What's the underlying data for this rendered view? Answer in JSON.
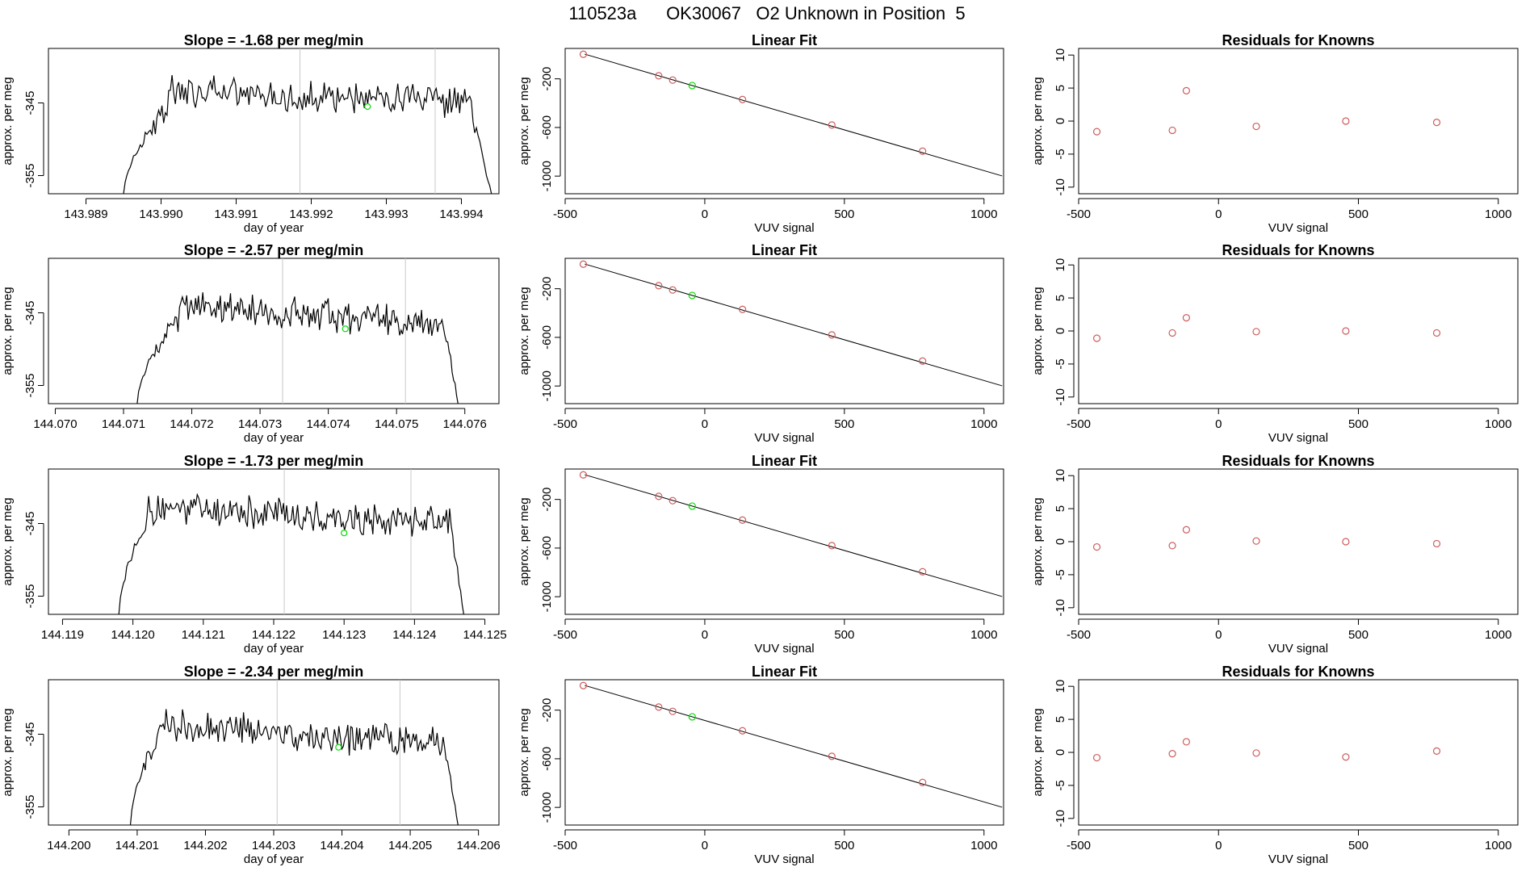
{
  "page_title": "110523a      OK30067   O2 Unknown in Position  5",
  "colors": {
    "line": "#000000",
    "grid": "#c8c8c8",
    "known": "#cd5c5c",
    "unknown": "#00dd00",
    "fit": "#000000"
  },
  "chart_data": [
    {
      "type": "line",
      "panel": "time-series",
      "row": 1,
      "title": "Slope =  -1.68  per meg/min",
      "xlabel": "day of year",
      "ylabel": "approx. per meg",
      "xlim": [
        143.9885,
        143.9945
      ],
      "ylim": [
        -357.5,
        -337.5
      ],
      "xticks": [
        "143.989",
        "143.990",
        "143.991",
        "143.992",
        "143.993",
        "143.994"
      ],
      "xtick_values": [
        143.989,
        143.99,
        143.991,
        143.992,
        143.993,
        143.994
      ],
      "yticks": [
        "-345",
        "-355"
      ],
      "ytick_values": [
        -345,
        -355
      ],
      "series_span": [
        143.9895,
        143.9944
      ],
      "rise_end": 143.9901,
      "fall_start": 143.9941,
      "plateau": -343.3,
      "trend": -0.6,
      "vlines": [
        143.99185,
        143.99365
      ],
      "marker": {
        "x": 143.99275,
        "y": -345.5
      }
    },
    {
      "type": "scatter",
      "panel": "linear-fit",
      "row": 1,
      "title": "Linear Fit",
      "xlabel": "VUV signal",
      "ylabel": "approx. per meg",
      "xlim": [
        -500,
        1070
      ],
      "ylim": [
        -1145,
        50
      ],
      "xticks": [
        "-500",
        "0",
        "500",
        "1000"
      ],
      "xtick_values": [
        -500,
        0,
        500,
        1000
      ],
      "yticks": [
        "-200",
        "-600",
        "-1000"
      ],
      "ytick_values": [
        -200,
        -600,
        -1000
      ],
      "knowns": [
        {
          "x": -435,
          "y": 2
        },
        {
          "x": -165,
          "y": -175
        },
        {
          "x": -115,
          "y": -210
        },
        {
          "x": 135,
          "y": -370
        },
        {
          "x": 455,
          "y": -580
        },
        {
          "x": 780,
          "y": -795
        }
      ],
      "unknown": {
        "x": -45,
        "y": -255
      },
      "fit_line": {
        "slope": -0.67,
        "intercept": -285,
        "x_range": [
          -430,
          1065
        ]
      }
    },
    {
      "type": "scatter",
      "panel": "residuals",
      "row": 1,
      "title": "Residuals for Knowns",
      "xlabel": "VUV signal",
      "ylabel": "approx. per meg",
      "xlim": [
        -500,
        1070
      ],
      "ylim": [
        -11,
        11
      ],
      "xticks": [
        "-500",
        "0",
        "500",
        "1000"
      ],
      "xtick_values": [
        -500,
        0,
        500,
        1000
      ],
      "yticks": [
        "-10",
        "-5",
        "0",
        "5",
        "10"
      ],
      "ytick_values": [
        -10,
        -5,
        0,
        5,
        10
      ],
      "knowns": [
        {
          "x": -435,
          "y": -1.6
        },
        {
          "x": -165,
          "y": -1.4
        },
        {
          "x": -115,
          "y": 4.6
        },
        {
          "x": 135,
          "y": -0.8
        },
        {
          "x": 455,
          "y": 0.0
        },
        {
          "x": 780,
          "y": -0.2
        }
      ]
    },
    {
      "type": "line",
      "panel": "time-series",
      "row": 2,
      "title": "Slope =  -2.57  per meg/min",
      "xlabel": "day of year",
      "ylabel": "approx. per meg",
      "xlim": [
        144.0699,
        144.0765
      ],
      "ylim": [
        -357.5,
        -337.5
      ],
      "xticks": [
        "144.070",
        "144.071",
        "144.072",
        "144.073",
        "144.074",
        "144.075",
        "144.076"
      ],
      "xtick_values": [
        144.07,
        144.071,
        144.072,
        144.073,
        144.074,
        144.075,
        144.076
      ],
      "yticks": [
        "-345",
        "-355"
      ],
      "ytick_values": [
        -345,
        -355
      ],
      "series_span": [
        144.0712,
        144.0759
      ],
      "rise_end": 144.0718,
      "fall_start": 144.0757,
      "plateau": -343.5,
      "trend": -1.1,
      "vlines": [
        144.07333,
        144.07513
      ],
      "marker": {
        "x": 144.07425,
        "y": -347.2
      }
    },
    {
      "type": "scatter",
      "panel": "linear-fit",
      "row": 2,
      "title": "Linear Fit",
      "xlabel": "VUV signal",
      "ylabel": "approx. per meg",
      "xlim": [
        -500,
        1070
      ],
      "ylim": [
        -1145,
        50
      ],
      "xticks": [
        "-500",
        "0",
        "500",
        "1000"
      ],
      "xtick_values": [
        -500,
        0,
        500,
        1000
      ],
      "yticks": [
        "-200",
        "-600",
        "-1000"
      ],
      "ytick_values": [
        -200,
        -600,
        -1000
      ],
      "knowns": [
        {
          "x": -435,
          "y": 2
        },
        {
          "x": -165,
          "y": -175
        },
        {
          "x": -115,
          "y": -210
        },
        {
          "x": 135,
          "y": -370
        },
        {
          "x": 455,
          "y": -580
        },
        {
          "x": 780,
          "y": -795
        }
      ],
      "unknown": {
        "x": -45,
        "y": -255
      },
      "fit_line": {
        "slope": -0.67,
        "intercept": -285,
        "x_range": [
          -430,
          1065
        ]
      }
    },
    {
      "type": "scatter",
      "panel": "residuals",
      "row": 2,
      "title": "Residuals for Knowns",
      "xlabel": "VUV signal",
      "ylabel": "approx. per meg",
      "xlim": [
        -500,
        1070
      ],
      "ylim": [
        -11,
        11
      ],
      "xticks": [
        "-500",
        "0",
        "500",
        "1000"
      ],
      "xtick_values": [
        -500,
        0,
        500,
        1000
      ],
      "yticks": [
        "-10",
        "-5",
        "0",
        "5",
        "10"
      ],
      "ytick_values": [
        -10,
        -5,
        0,
        5,
        10
      ],
      "knowns": [
        {
          "x": -435,
          "y": -1.1
        },
        {
          "x": -165,
          "y": -0.3
        },
        {
          "x": -115,
          "y": 2.0
        },
        {
          "x": 135,
          "y": -0.1
        },
        {
          "x": 455,
          "y": 0.0
        },
        {
          "x": 780,
          "y": -0.3
        }
      ]
    },
    {
      "type": "line",
      "panel": "time-series",
      "row": 3,
      "title": "Slope =  -1.73  per meg/min",
      "xlabel": "day of year",
      "ylabel": "approx. per meg",
      "xlim": [
        144.1188,
        144.1252
      ],
      "ylim": [
        -357.5,
        -337.5
      ],
      "xticks": [
        "144.119",
        "144.120",
        "144.121",
        "144.122",
        "144.123",
        "144.124",
        "144.125"
      ],
      "xtick_values": [
        144.119,
        144.12,
        144.121,
        144.122,
        144.123,
        144.124,
        144.125
      ],
      "yticks": [
        "-345",
        "-355"
      ],
      "ytick_values": [
        -345,
        -355
      ],
      "series_span": [
        144.1198,
        144.1247
      ],
      "rise_end": 144.1202,
      "fall_start": 144.1245,
      "plateau": -342.8,
      "trend": -0.7,
      "vlines": [
        144.12215,
        144.12395
      ],
      "marker": {
        "x": 144.123,
        "y": -346.3
      }
    },
    {
      "type": "scatter",
      "panel": "linear-fit",
      "row": 3,
      "title": "Linear Fit",
      "xlabel": "VUV signal",
      "ylabel": "approx. per meg",
      "xlim": [
        -500,
        1070
      ],
      "ylim": [
        -1145,
        50
      ],
      "xticks": [
        "-500",
        "0",
        "500",
        "1000"
      ],
      "xtick_values": [
        -500,
        0,
        500,
        1000
      ],
      "yticks": [
        "-200",
        "-600",
        "-1000"
      ],
      "ytick_values": [
        -200,
        -600,
        -1000
      ],
      "knowns": [
        {
          "x": -435,
          "y": 2
        },
        {
          "x": -165,
          "y": -175
        },
        {
          "x": -115,
          "y": -210
        },
        {
          "x": 135,
          "y": -370
        },
        {
          "x": 455,
          "y": -580
        },
        {
          "x": 780,
          "y": -795
        }
      ],
      "unknown": {
        "x": -45,
        "y": -255
      },
      "fit_line": {
        "slope": -0.67,
        "intercept": -285,
        "x_range": [
          -430,
          1065
        ]
      }
    },
    {
      "type": "scatter",
      "panel": "residuals",
      "row": 3,
      "title": "Residuals for Knowns",
      "xlabel": "VUV signal",
      "ylabel": "approx. per meg",
      "xlim": [
        -500,
        1070
      ],
      "ylim": [
        -11,
        11
      ],
      "xticks": [
        "-500",
        "0",
        "500",
        "1000"
      ],
      "xtick_values": [
        -500,
        0,
        500,
        1000
      ],
      "yticks": [
        "-10",
        "-5",
        "0",
        "5",
        "10"
      ],
      "ytick_values": [
        -10,
        -5,
        0,
        5,
        10
      ],
      "knowns": [
        {
          "x": -435,
          "y": -0.8
        },
        {
          "x": -165,
          "y": -0.6
        },
        {
          "x": -115,
          "y": 1.8
        },
        {
          "x": 135,
          "y": 0.1
        },
        {
          "x": 455,
          "y": 0.0
        },
        {
          "x": 780,
          "y": -0.3
        }
      ]
    },
    {
      "type": "line",
      "panel": "time-series",
      "row": 4,
      "title": "Slope =  -2.34  per meg/min",
      "xlabel": "day of year",
      "ylabel": "approx. per meg",
      "xlim": [
        144.1997,
        144.2063
      ],
      "ylim": [
        -357.5,
        -337.5
      ],
      "xticks": [
        "144.200",
        "144.201",
        "144.202",
        "144.203",
        "144.204",
        "144.205",
        "144.206"
      ],
      "xtick_values": [
        144.2,
        144.201,
        144.202,
        144.203,
        144.204,
        144.205,
        144.206
      ],
      "yticks": [
        "-345",
        "-355"
      ],
      "ytick_values": [
        -345,
        -355
      ],
      "series_span": [
        144.2009,
        144.2057
      ],
      "rise_end": 144.2013,
      "fall_start": 144.2055,
      "plateau": -343.4,
      "trend": -1.0,
      "vlines": [
        144.20305,
        144.20485
      ],
      "marker": {
        "x": 144.20395,
        "y": -346.8
      }
    },
    {
      "type": "scatter",
      "panel": "linear-fit",
      "row": 4,
      "title": "Linear Fit",
      "xlabel": "VUV signal",
      "ylabel": "approx. per meg",
      "xlim": [
        -500,
        1070
      ],
      "ylim": [
        -1145,
        50
      ],
      "xticks": [
        "-500",
        "0",
        "500",
        "1000"
      ],
      "xtick_values": [
        -500,
        0,
        500,
        1000
      ],
      "yticks": [
        "-200",
        "-600",
        "-1000"
      ],
      "ytick_values": [
        -200,
        -600,
        -1000
      ],
      "knowns": [
        {
          "x": -435,
          "y": 2
        },
        {
          "x": -165,
          "y": -175
        },
        {
          "x": -115,
          "y": -210
        },
        {
          "x": 135,
          "y": -370
        },
        {
          "x": 455,
          "y": -580
        },
        {
          "x": 780,
          "y": -795
        }
      ],
      "unknown": {
        "x": -45,
        "y": -255
      },
      "fit_line": {
        "slope": -0.67,
        "intercept": -285,
        "x_range": [
          -430,
          1065
        ]
      }
    },
    {
      "type": "scatter",
      "panel": "residuals",
      "row": 4,
      "title": "Residuals for Knowns",
      "xlabel": "VUV signal",
      "ylabel": "approx. per meg",
      "xlim": [
        -500,
        1070
      ],
      "ylim": [
        -11,
        11
      ],
      "xticks": [
        "-500",
        "0",
        "500",
        "1000"
      ],
      "xtick_values": [
        -500,
        0,
        500,
        1000
      ],
      "yticks": [
        "-10",
        "-5",
        "0",
        "5",
        "10"
      ],
      "ytick_values": [
        -10,
        -5,
        0,
        5,
        10
      ],
      "knowns": [
        {
          "x": -435,
          "y": -0.8
        },
        {
          "x": -165,
          "y": -0.2
        },
        {
          "x": -115,
          "y": 1.6
        },
        {
          "x": 135,
          "y": -0.1
        },
        {
          "x": 455,
          "y": -0.7
        },
        {
          "x": 780,
          "y": 0.2
        }
      ]
    }
  ]
}
